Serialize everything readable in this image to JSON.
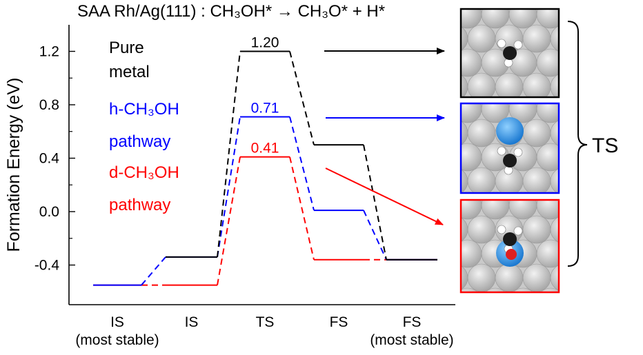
{
  "chart_data": {
    "type": "line",
    "title": "SAA Rh/Ag(111) : CH₃OH* → CH₃O* + H*",
    "ylabel": "Formation Energy (eV)",
    "xlabel": "",
    "ylim": [
      -0.55,
      1.37
    ],
    "yticks": [
      "1.2",
      "0.8",
      "0.4",
      "0.0",
      "-0.4"
    ],
    "grid": false,
    "categories": [
      {
        "line1": "IS",
        "line2": "(most stable)"
      },
      {
        "line1": "IS",
        "line2": ""
      },
      {
        "line1": "TS",
        "line2": ""
      },
      {
        "line1": "FS",
        "line2": ""
      },
      {
        "line1": "FS",
        "line2": "(most stable)"
      }
    ],
    "series": [
      {
        "name": "Pure metal",
        "name_lines": [
          "Pure",
          "metal"
        ],
        "color": "#000000",
        "values": [
          null,
          -0.34,
          1.2,
          0.5,
          -0.36
        ],
        "label": "1.20"
      },
      {
        "name": "h-CH₃OH pathway",
        "name_lines": [
          "h-CH₃OH",
          "pathway"
        ],
        "color": "#0000ff",
        "values": [
          -0.55,
          -0.34,
          0.71,
          0.01,
          -0.36
        ],
        "label": "0.71"
      },
      {
        "name": "d-CH₃OH pathway",
        "name_lines": [
          "d-CH₃OH",
          "pathway"
        ],
        "color": "#ff0000",
        "values": [
          -0.55,
          -0.55,
          0.41,
          -0.36,
          -0.36
        ],
        "label": "0.41"
      }
    ],
    "annotation": "TS",
    "structure_images": [
      {
        "name": "pure-metal-ts",
        "frame_color": "#000000",
        "dopant_color": null
      },
      {
        "name": "h-ch3oh-ts",
        "frame_color": "#0000ff",
        "dopant_color": "#2a8ee0"
      },
      {
        "name": "d-ch3oh-ts",
        "frame_color": "#ff0000",
        "dopant_color": "#2a8ee0"
      }
    ]
  }
}
